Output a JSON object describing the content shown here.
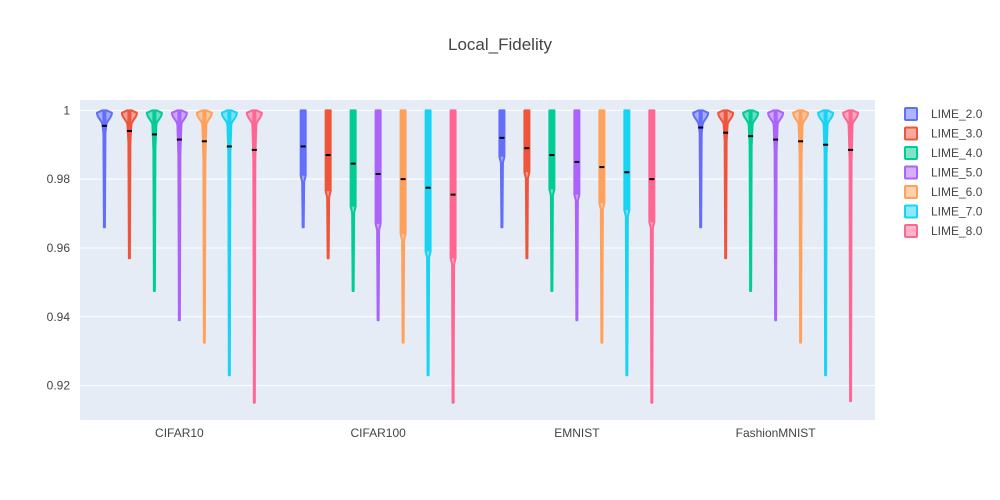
{
  "chart_data": {
    "type": "violin",
    "title": "Local_Fidelity",
    "xlabel": "",
    "ylabel": "",
    "categories": [
      "CIFAR10",
      "CIFAR100",
      "EMNIST",
      "FashionMNIST"
    ],
    "ylim": [
      0.91,
      1.003
    ],
    "yticks": [
      0.92,
      0.94,
      0.96,
      0.98,
      1
    ],
    "ytick_labels": [
      "0.92",
      "0.94",
      "0.96",
      "0.98",
      "1"
    ],
    "grid": true,
    "legend_position": "right",
    "series": [
      {
        "name": "LIME_2.0",
        "color": "#636efa",
        "stats": [
          {
            "min": 0.966,
            "q1": 0.9935,
            "median": 0.9955,
            "q3": 1.0,
            "max": 1.0,
            "shape": "top"
          },
          {
            "min": 0.966,
            "q1": 0.981,
            "median": 0.9895,
            "q3": 1.0,
            "max": 1.0,
            "shape": "flat"
          },
          {
            "min": 0.966,
            "q1": 0.9865,
            "median": 0.992,
            "q3": 1.0,
            "max": 1.0,
            "shape": "flat"
          },
          {
            "min": 0.966,
            "q1": 0.9935,
            "median": 0.995,
            "q3": 1.0,
            "max": 1.0,
            "shape": "top"
          }
        ]
      },
      {
        "name": "LIME_3.0",
        "color": "#ef553b",
        "stats": [
          {
            "min": 0.957,
            "q1": 0.991,
            "median": 0.994,
            "q3": 1.0,
            "max": 1.0,
            "shape": "top"
          },
          {
            "min": 0.957,
            "q1": 0.9765,
            "median": 0.987,
            "q3": 1.0,
            "max": 1.0,
            "shape": "flat"
          },
          {
            "min": 0.957,
            "q1": 0.982,
            "median": 0.989,
            "q3": 1.0,
            "max": 1.0,
            "shape": "flat"
          },
          {
            "min": 0.957,
            "q1": 0.9915,
            "median": 0.9935,
            "q3": 1.0,
            "max": 1.0,
            "shape": "top"
          }
        ]
      },
      {
        "name": "LIME_4.0",
        "color": "#00cc96",
        "stats": [
          {
            "min": 0.9475,
            "q1": 0.989,
            "median": 0.993,
            "q3": 1.0,
            "max": 1.0,
            "shape": "top"
          },
          {
            "min": 0.9475,
            "q1": 0.972,
            "median": 0.9845,
            "q3": 1.0,
            "max": 1.0,
            "shape": "flat"
          },
          {
            "min": 0.9475,
            "q1": 0.977,
            "median": 0.987,
            "q3": 1.0,
            "max": 1.0,
            "shape": "flat"
          },
          {
            "min": 0.9475,
            "q1": 0.99,
            "median": 0.9925,
            "q3": 1.0,
            "max": 1.0,
            "shape": "top"
          }
        ]
      },
      {
        "name": "LIME_5.0",
        "color": "#ab63fa",
        "stats": [
          {
            "min": 0.939,
            "q1": 0.9875,
            "median": 0.9915,
            "q3": 1.0,
            "max": 1.0,
            "shape": "top"
          },
          {
            "min": 0.939,
            "q1": 0.967,
            "median": 0.9815,
            "q3": 1.0,
            "max": 1.0,
            "shape": "flat"
          },
          {
            "min": 0.939,
            "q1": 0.9755,
            "median": 0.985,
            "q3": 1.0,
            "max": 1.0,
            "shape": "flat"
          },
          {
            "min": 0.939,
            "q1": 0.9885,
            "median": 0.9915,
            "q3": 1.0,
            "max": 1.0,
            "shape": "top"
          }
        ]
      },
      {
        "name": "LIME_6.0",
        "color": "#ffa15a",
        "stats": [
          {
            "min": 0.9325,
            "q1": 0.9865,
            "median": 0.991,
            "q3": 1.0,
            "max": 1.0,
            "shape": "top"
          },
          {
            "min": 0.9325,
            "q1": 0.964,
            "median": 0.98,
            "q3": 1.0,
            "max": 1.0,
            "shape": "flat"
          },
          {
            "min": 0.9325,
            "q1": 0.973,
            "median": 0.9835,
            "q3": 1.0,
            "max": 1.0,
            "shape": "flat"
          },
          {
            "min": 0.9325,
            "q1": 0.9875,
            "median": 0.991,
            "q3": 1.0,
            "max": 1.0,
            "shape": "top"
          }
        ]
      },
      {
        "name": "LIME_7.0",
        "color": "#19d3f3",
        "stats": [
          {
            "min": 0.923,
            "q1": 0.988,
            "median": 0.9895,
            "q3": 1.0,
            "max": 1.0,
            "shape": "top"
          },
          {
            "min": 0.923,
            "q1": 0.959,
            "median": 0.9775,
            "q3": 1.0,
            "max": 1.0,
            "shape": "flat"
          },
          {
            "min": 0.923,
            "q1": 0.971,
            "median": 0.982,
            "q3": 1.0,
            "max": 1.0,
            "shape": "flat"
          },
          {
            "min": 0.923,
            "q1": 0.9875,
            "median": 0.99,
            "q3": 1.0,
            "max": 1.0,
            "shape": "top"
          }
        ]
      },
      {
        "name": "LIME_8.0",
        "color": "#ff6692",
        "stats": [
          {
            "min": 0.915,
            "q1": 0.9865,
            "median": 0.9885,
            "q3": 1.0,
            "max": 1.0,
            "shape": "top"
          },
          {
            "min": 0.915,
            "q1": 0.957,
            "median": 0.9755,
            "q3": 1.0,
            "max": 1.0,
            "shape": "flat"
          },
          {
            "min": 0.915,
            "q1": 0.9675,
            "median": 0.98,
            "q3": 1.0,
            "max": 1.0,
            "shape": "flat"
          },
          {
            "min": 0.9155,
            "q1": 0.986,
            "median": 0.9885,
            "q3": 1.0,
            "max": 1.0,
            "shape": "top"
          }
        ]
      }
    ]
  }
}
